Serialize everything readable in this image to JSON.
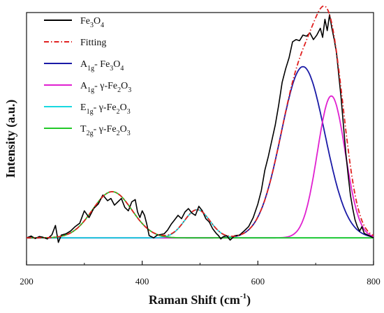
{
  "chart_data": {
    "type": "line",
    "xlabel": "Raman Shift (cm",
    "xlabel_sup": "-1",
    "xlabel_suffix": ")",
    "ylabel": "Intensity (a.u.)",
    "xlim": [
      200,
      800
    ],
    "ylim": [
      -0.12,
      1.0
    ],
    "x_ticks": [
      200,
      400,
      600,
      800
    ],
    "x_tick_labels": [
      "200",
      "400",
      "600",
      "800"
    ],
    "y_ticks_shown": false,
    "grid": false,
    "legend_position": "top-left",
    "series": [
      {
        "name": "Fe3O4",
        "legend": [
          {
            "t": "Fe",
            "s": ""
          },
          {
            "t": "3",
            "s": "sub"
          },
          {
            "t": "O",
            "s": ""
          },
          {
            "t": "4",
            "s": "sub"
          }
        ],
        "color": "#000000",
        "style": "solid",
        "kind": "data",
        "x": [
          200,
          208,
          215,
          222,
          228,
          236,
          244,
          250,
          255,
          260,
          268,
          276,
          284,
          292,
          300,
          308,
          316,
          324,
          332,
          340,
          346,
          352,
          358,
          364,
          370,
          376,
          382,
          388,
          392,
          396,
          400,
          404,
          408,
          412,
          416,
          420,
          426,
          432,
          438,
          444,
          450,
          456,
          462,
          468,
          474,
          480,
          486,
          492,
          498,
          504,
          510,
          516,
          522,
          528,
          532,
          536,
          540,
          546,
          552,
          560,
          568,
          576,
          584,
          592,
          600,
          606,
          612,
          618,
          624,
          630,
          636,
          642,
          648,
          654,
          660,
          666,
          672,
          678,
          684,
          690,
          696,
          702,
          708,
          712,
          716,
          720,
          724,
          728,
          732,
          736,
          740,
          744,
          748,
          752,
          756,
          760,
          764,
          768,
          772,
          776,
          780,
          784,
          788,
          792,
          796,
          800
        ],
        "y": [
          0.0,
          0.008,
          -0.003,
          0.006,
          0.003,
          -0.005,
          0.014,
          0.055,
          -0.02,
          0.012,
          0.018,
          0.03,
          0.05,
          0.065,
          0.12,
          0.09,
          0.13,
          0.15,
          0.19,
          0.165,
          0.175,
          0.145,
          0.16,
          0.175,
          0.135,
          0.12,
          0.16,
          0.17,
          0.115,
          0.09,
          0.12,
          0.1,
          0.06,
          0.01,
          0.005,
          0.0,
          0.012,
          0.015,
          0.018,
          0.035,
          0.06,
          0.08,
          0.1,
          0.085,
          0.115,
          0.13,
          0.11,
          0.1,
          0.14,
          0.12,
          0.085,
          0.07,
          0.04,
          0.02,
          0.01,
          -0.005,
          0.005,
          0.01,
          -0.01,
          0.01,
          0.012,
          0.03,
          0.05,
          0.09,
          0.15,
          0.21,
          0.3,
          0.36,
          0.43,
          0.5,
          0.59,
          0.69,
          0.75,
          0.8,
          0.87,
          0.88,
          0.875,
          0.9,
          0.895,
          0.91,
          0.88,
          0.9,
          0.93,
          0.89,
          0.97,
          0.92,
          0.99,
          0.93,
          0.88,
          0.82,
          0.72,
          0.62,
          0.5,
          0.38,
          0.28,
          0.19,
          0.13,
          0.08,
          0.05,
          0.03,
          0.05,
          0.02,
          0.015,
          0.01,
          0.005,
          0.0
        ]
      },
      {
        "name": "Fitting",
        "legend": [
          {
            "t": "Fitting",
            "s": ""
          }
        ],
        "color": "#e02020",
        "style": "dashdot",
        "kind": "sum"
      },
      {
        "name": "A1g - Fe3O4",
        "legend": [
          {
            "t": "A",
            "s": ""
          },
          {
            "t": "1g",
            "s": "sub"
          },
          {
            "t": "- Fe",
            "s": ""
          },
          {
            "t": "3",
            "s": "sub"
          },
          {
            "t": "O",
            "s": ""
          },
          {
            "t": "4",
            "s": "sub"
          }
        ],
        "color": "#1a1aa6",
        "style": "solid",
        "kind": "gaussian",
        "center": 678,
        "amplitude": 0.76,
        "sigma": 38
      },
      {
        "name": "A1g - γ-Fe2O3",
        "legend": [
          {
            "t": "A",
            "s": ""
          },
          {
            "t": "1g",
            "s": "sub"
          },
          {
            "t": "- γ-Fe",
            "s": ""
          },
          {
            "t": "2",
            "s": "sub"
          },
          {
            "t": "O",
            "s": ""
          },
          {
            "t": "3",
            "s": "sub"
          }
        ],
        "color": "#e020d0",
        "style": "solid",
        "kind": "gaussian",
        "center": 727,
        "amplitude": 0.63,
        "sigma": 24
      },
      {
        "name": "E1g - γ-Fe2O3",
        "legend": [
          {
            "t": "E",
            "s": ""
          },
          {
            "t": "1g",
            "s": "sub"
          },
          {
            "t": "- γ-Fe",
            "s": ""
          },
          {
            "t": "2",
            "s": "sub"
          },
          {
            "t": "O",
            "s": ""
          },
          {
            "t": "3",
            "s": "sub"
          }
        ],
        "color": "#18d8e0",
        "style": "solid",
        "kind": "gaussian",
        "center": 495,
        "amplitude": 0.125,
        "sigma": 22
      },
      {
        "name": "T2g - γ-Fe2O3",
        "legend": [
          {
            "t": "T",
            "s": ""
          },
          {
            "t": "2g",
            "s": "sub"
          },
          {
            "t": "- γ-Fe",
            "s": ""
          },
          {
            "t": "2",
            "s": "sub"
          },
          {
            "t": "O",
            "s": ""
          },
          {
            "t": "3",
            "s": "sub"
          }
        ],
        "color": "#22c828",
        "style": "solid",
        "kind": "gaussian",
        "center": 348,
        "amplitude": 0.205,
        "sigma": 34
      }
    ]
  }
}
